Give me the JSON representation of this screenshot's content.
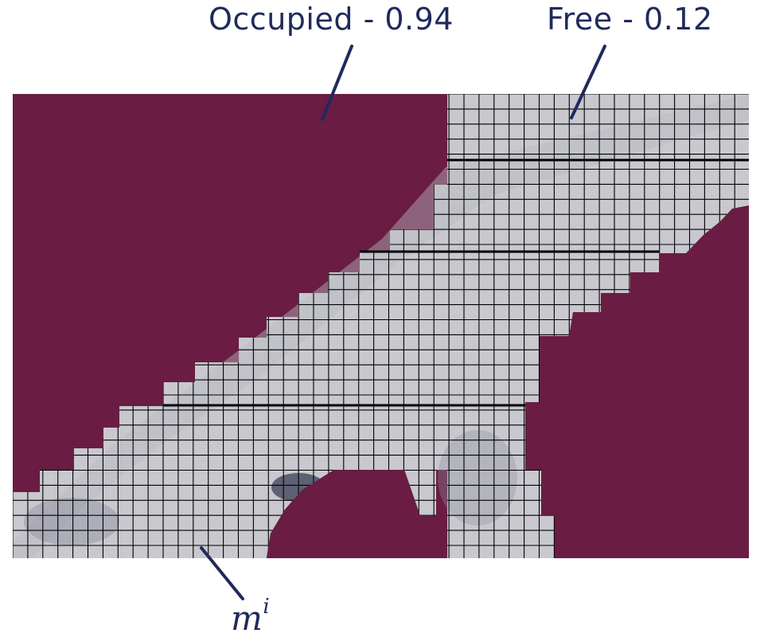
{
  "labels": {
    "occupied_name": "Occupied",
    "occupied_value": "0.94",
    "free_name": "Free",
    "free_value": "0.12",
    "map_symbol": "m",
    "map_index": "i"
  },
  "colors": {
    "occupied": "#6a1c43",
    "free_tile": "#c8c8ce",
    "free_tile_alt": "#b9bac2",
    "grid_line": "#000000",
    "annotation": "#1f2a5c"
  }
}
